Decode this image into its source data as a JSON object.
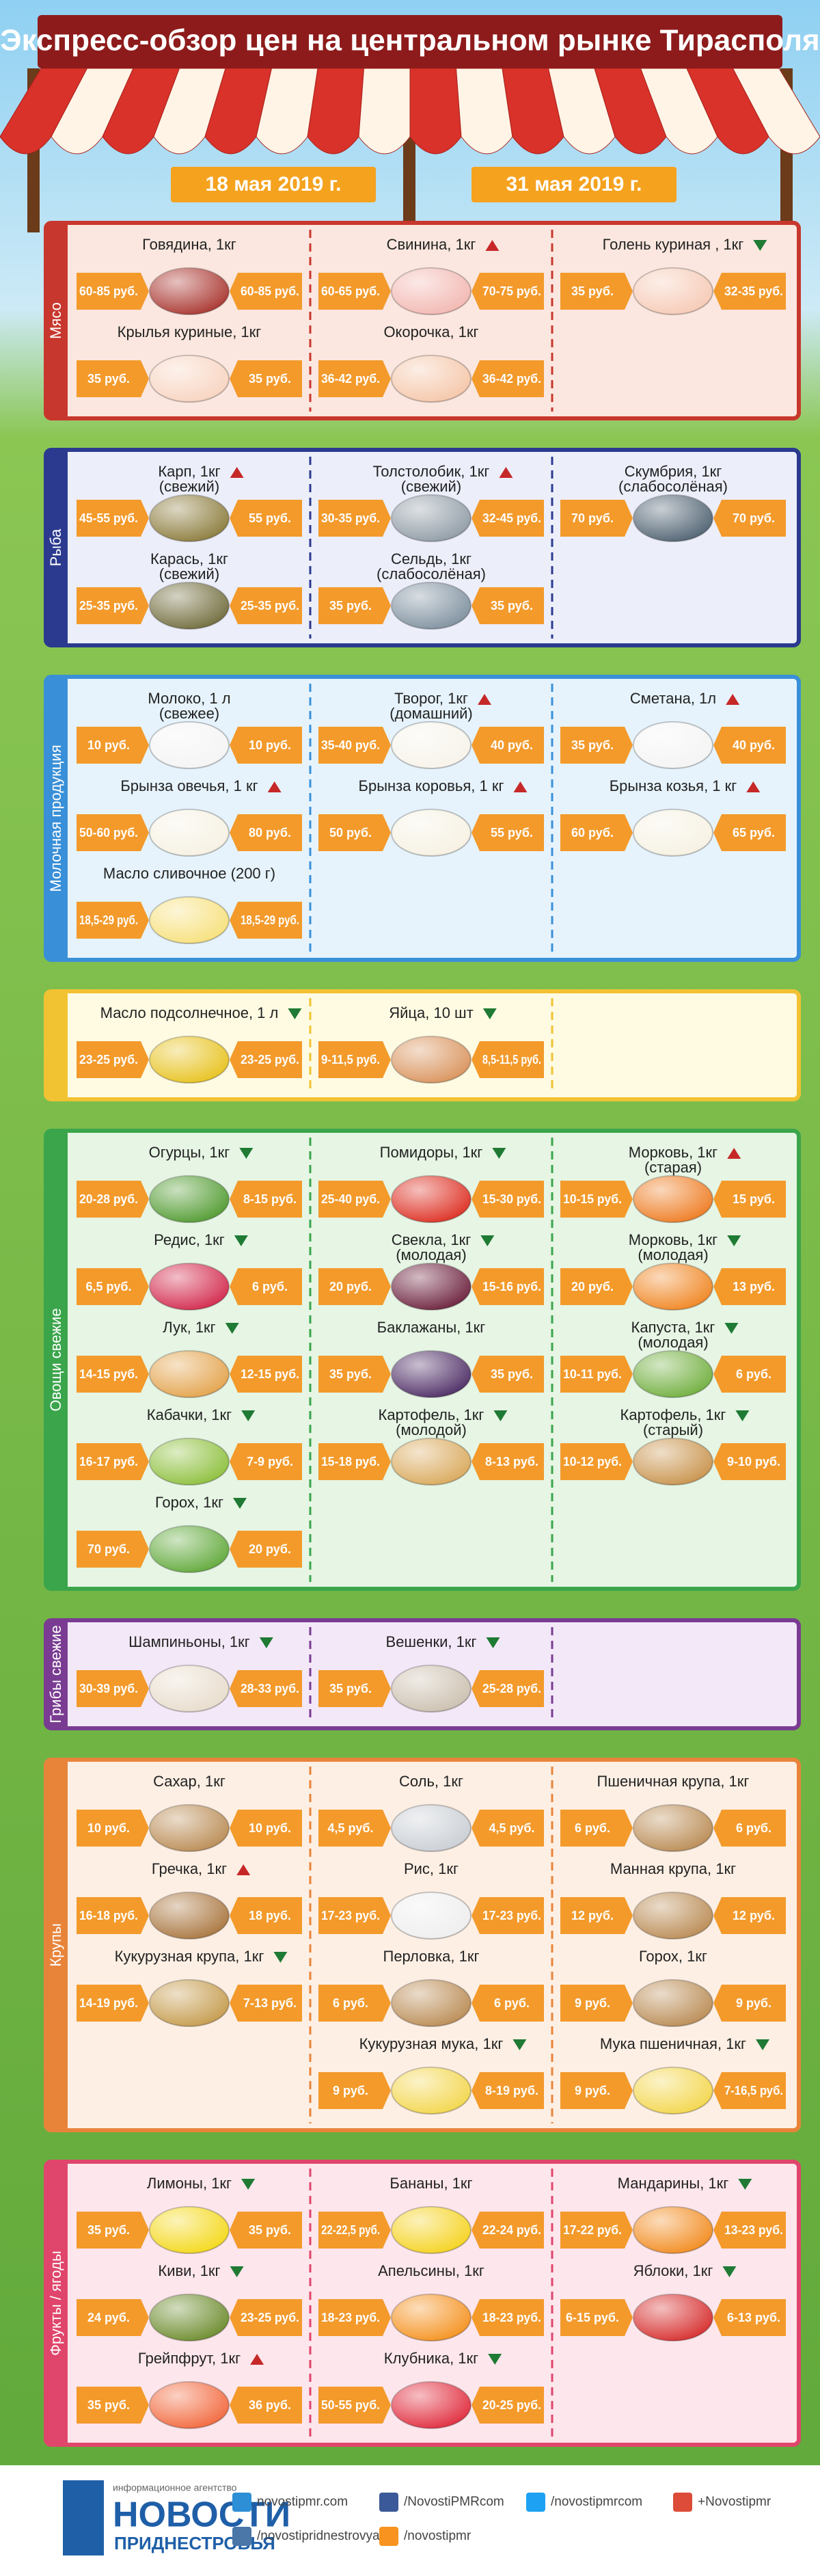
{
  "title": "Экспресс-обзор цен на центральном рынке Тирасполя",
  "dates": [
    "18 мая 2019 г.",
    "31 мая 2019 г."
  ],
  "sections": [
    {
      "label": "Мясо",
      "color": "#c8372d",
      "bg": "#fbe7df",
      "rows": [
        [
          {
            "name": "Говядина, 1кг",
            "old": "60-85 руб.",
            "new": "60-85 руб.",
            "color": "#a8322c"
          },
          {
            "name": "Свинина, 1кг",
            "trend": "up",
            "old": "60-65 руб.",
            "new": "70-75 руб.",
            "color": "#f2b6b0"
          },
          {
            "name": "Голень куриная , 1кг",
            "trend": "down",
            "old": "35 руб.",
            "new": "32-35 руб.",
            "color": "#f6c9b4"
          }
        ],
        [
          {
            "name": "Крылья куриные, 1кг",
            "old": "35 руб.",
            "new": "35 руб.",
            "color": "#f8d3bf"
          },
          {
            "name": "Окорочка, 1кг",
            "old": "36-42 руб.",
            "new": "36-42 руб.",
            "color": "#f5c6a8"
          },
          null
        ]
      ]
    },
    {
      "label": "Рыба",
      "color": "#2b3a8f",
      "bg": "#eceefa",
      "rows": [
        [
          {
            "name": "Карп, 1кг",
            "note": "(свежий)",
            "trend": "up",
            "old": "45-55 руб.",
            "new": "55 руб.",
            "color": "#8a7a3a"
          },
          {
            "name": "Толстолобик, 1кг",
            "note": "(свежий)",
            "trend": "up",
            "old": "30-35 руб.",
            "new": "32-45 руб.",
            "color": "#8e9aa4"
          },
          {
            "name": "Скумбрия, 1кг",
            "note": "(слабосолёная)",
            "old": "70 руб.",
            "new": "70 руб.",
            "color": "#4d6070"
          }
        ],
        [
          {
            "name": "Карась, 1кг",
            "note": "(свежий)",
            "old": "25-35 руб.",
            "new": "25-35 руб.",
            "color": "#6f6a3a"
          },
          {
            "name": "Сельдь, 1кг",
            "note": "(слабосолёная)",
            "old": "35 руб.",
            "new": "35 руб.",
            "color": "#7d8f9e"
          },
          null
        ]
      ]
    },
    {
      "label": "Молочная продукция",
      "color": "#3a90d8",
      "bg": "#e6f3fc",
      "rows": [
        [
          {
            "name": "Молоко, 1 л",
            "note": "(свежее)",
            "old": "10 руб.",
            "new": "10 руб.",
            "color": "#f4f4f4"
          },
          {
            "name": "Творог, 1кг",
            "note": "(домашний)",
            "trend": "up",
            "old": "35-40 руб.",
            "new": "40 руб.",
            "color": "#f7f3ea"
          },
          {
            "name": "Сметана, 1л",
            "trend": "up",
            "old": "35 руб.",
            "new": "40 руб.",
            "color": "#f4f4f4"
          }
        ],
        [
          {
            "name": "Брынза овечья, 1 кг",
            "trend": "up",
            "old": "50-60 руб.",
            "new": "80 руб.",
            "color": "#f6f1e2"
          },
          {
            "name": "Брынза коровья, 1 кг",
            "trend": "up",
            "old": "50 руб.",
            "new": "55 руб.",
            "color": "#f6f1e2"
          },
          {
            "name": "Брынза козья, 1 кг",
            "trend": "up",
            "old": "60 руб.",
            "new": "65 руб.",
            "color": "#f6f1e2"
          }
        ],
        [
          {
            "name": "Масло сливочное (200 г)",
            "old": "18,5-29 руб.",
            "new": "18,5-29 руб.",
            "color": "#f7e07a"
          },
          null,
          null
        ]
      ]
    },
    {
      "color": "#f1c232",
      "bg": "#fffbe3",
      "rows": [
        [
          {
            "name": "Масло подсолнечное, 1 л",
            "trend": "down",
            "old": "23-25 руб.",
            "new": "23-25 руб.",
            "color": "#e7c21c"
          },
          {
            "name": "Яйца, 10 шт",
            "trend": "down",
            "old": "9-11,5 руб.",
            "new": "8,5-11,5 руб.",
            "color": "#d9925a"
          },
          null
        ]
      ]
    },
    {
      "label": "Овощи свежие",
      "color": "#3ba54b",
      "bg": "#e6f5e4",
      "rows": [
        [
          {
            "name": "Огурцы, 1кг",
            "trend": "down",
            "old": "20-28 руб.",
            "new": "8-15 руб.",
            "color": "#4f9a2e"
          },
          {
            "name": "Помидоры, 1кг",
            "trend": "down",
            "old": "25-40 руб.",
            "new": "15-30 руб.",
            "color": "#dd2c1f"
          },
          {
            "name": "Морковь, 1кг",
            "note": "(старая)",
            "trend": "up",
            "old": "10-15 руб.",
            "new": "15 руб.",
            "color": "#ee7a1f"
          }
        ],
        [
          {
            "name": "Редис, 1кг",
            "trend": "down",
            "old": "6,5 руб.",
            "new": "6 руб.",
            "color": "#d2264a"
          },
          {
            "name": "Свекла, 1кг",
            "note": "(молодая)",
            "trend": "down",
            "old": "20 руб.",
            "new": "15-16 руб.",
            "color": "#6a1e3a"
          },
          {
            "name": "Морковь, 1кг",
            "note": "(молодая)",
            "trend": "down",
            "old": "20 руб.",
            "new": "13 руб.",
            "color": "#f0841f"
          }
        ],
        [
          {
            "name": "Лук, 1кг",
            "trend": "down",
            "old": "14-15 руб.",
            "new": "12-15 руб.",
            "color": "#e3a24a"
          },
          {
            "name": "Баклажаны, 1кг",
            "old": "35 руб.",
            "new": "35 руб.",
            "color": "#4b2a63"
          },
          {
            "name": "Капуста, 1кг",
            "note": "(молодая)",
            "trend": "down",
            "old": "10-11 руб.",
            "new": "6 руб.",
            "color": "#6fae3c"
          }
        ],
        [
          {
            "name": "Кабачки, 1кг",
            "trend": "down",
            "old": "16-17 руб.",
            "new": "7-9 руб.",
            "color": "#8cbf3a"
          },
          {
            "name": "Картофель, 1кг",
            "note": "(молодой)",
            "trend": "down",
            "old": "15-18 руб.",
            "new": "8-13 руб.",
            "color": "#d9a85a"
          },
          {
            "name": "Картофель, 1кг",
            "note": "(старый)",
            "trend": "down",
            "old": "10-12 руб.",
            "new": "9-10 руб.",
            "color": "#c8924a"
          }
        ],
        [
          {
            "name": "Горох, 1кг",
            "trend": "down",
            "old": "70 руб.",
            "new": "20 руб.",
            "color": "#5fa838"
          },
          null,
          null
        ]
      ]
    },
    {
      "label": "Грибы свежие",
      "color": "#7a3c92",
      "bg": "#f3e8f8",
      "rows": [
        [
          {
            "name": "Шампиньоны, 1кг",
            "trend": "down",
            "old": "30-39 руб.",
            "new": "28-33 руб.",
            "color": "#e8dccb"
          },
          {
            "name": "Вешенки, 1кг",
            "trend": "down",
            "old": "35 руб.",
            "new": "25-28 руб.",
            "color": "#cbbfae"
          },
          null
        ]
      ]
    },
    {
      "label": "Крупы",
      "color": "#e8843a",
      "bg": "#fdefe4",
      "rows": [
        [
          {
            "name": "Сахар, 1кг",
            "old": "10 руб.",
            "new": "10 руб.",
            "color": "#b98a52"
          },
          {
            "name": "Соль, 1кг",
            "old": "4,5 руб.",
            "new": "4,5 руб.",
            "color": "#c9ced4"
          },
          {
            "name": "Пшеничная крупа, 1кг",
            "old": "6 руб.",
            "new": "6 руб.",
            "color": "#b98a52"
          }
        ],
        [
          {
            "name": "Гречка, 1кг",
            "trend": "up",
            "old": "16-18 руб.",
            "new": "18 руб.",
            "color": "#a8743c"
          },
          {
            "name": "Рис, 1кг",
            "old": "17-23 руб.",
            "new": "17-23 руб.",
            "color": "#eeeeee"
          },
          {
            "name": "Манная крупа, 1кг",
            "old": "12 руб.",
            "new": "12 руб.",
            "color": "#b98a52"
          }
        ],
        [
          {
            "name": "Кукурузная крупа, 1кг",
            "trend": "down",
            "old": "14-19 руб.",
            "new": "7-13 руб.",
            "color": "#c49a4a"
          },
          {
            "name": "Перловка, 1кг",
            "old": "6 руб.",
            "new": "6 руб.",
            "color": "#b98a52"
          },
          {
            "name": "Горох, 1кг",
            "old": "9 руб.",
            "new": "9 руб.",
            "color": "#b98a52"
          }
        ],
        [
          null,
          {
            "name": "Кукурузная мука, 1кг",
            "trend": "down",
            "old": "9 руб.",
            "new": "8-19 руб.",
            "color": "#f3d64a"
          },
          {
            "name": "Мука пшеничная, 1кг",
            "trend": "down",
            "old": "9 руб.",
            "new": "7-16,5 руб.",
            "color": "#f3d64a"
          }
        ]
      ]
    },
    {
      "label": "Фрукты / ягоды",
      "color": "#e0456b",
      "bg": "#fde6ec",
      "rows": [
        [
          {
            "name": "Лимоны, 1кг",
            "trend": "down",
            "old": "35 руб.",
            "new": "35 руб.",
            "color": "#f4d816"
          },
          {
            "name": "Бананы, 1кг",
            "old": "22-22,5 руб.",
            "new": "22-24 руб.",
            "color": "#f5d21c"
          },
          {
            "name": "Мандарины, 1кг",
            "trend": "down",
            "old": "17-22 руб.",
            "new": "13-23 руб.",
            "color": "#f28a1c"
          }
        ],
        [
          {
            "name": "Киви, 1кг",
            "trend": "down",
            "old": "24 руб.",
            "new": "23-25 руб.",
            "color": "#6a8a2a"
          },
          {
            "name": "Апельсины, 1кг",
            "old": "18-23 руб.",
            "new": "18-23 руб.",
            "color": "#f5901c"
          },
          {
            "name": "Яблоки, 1кг",
            "trend": "down",
            "old": "6-15 руб.",
            "new": "6-13 руб.",
            "color": "#d62a2a"
          }
        ],
        [
          {
            "name": "Грейпфрут, 1кг",
            "trend": "up",
            "old": "35 руб.",
            "new": "36 руб.",
            "color": "#f2663a"
          },
          {
            "name": "Клубника, 1кг",
            "trend": "down",
            "old": "50-55 руб.",
            "new": "20-25 руб.",
            "color": "#e0283a"
          },
          null
        ]
      ]
    }
  ],
  "footer": {
    "tagline": "информационное агентство",
    "brand": "НОВОСТИ",
    "region": "ПРИДНЕСТРОВЬЯ",
    "links": [
      "novostipmr.com",
      "/NovostiPMRcom",
      "/novostipmrcom",
      "+Novostipmr",
      "/novostipridnestrovya",
      "/novostipmr"
    ]
  }
}
